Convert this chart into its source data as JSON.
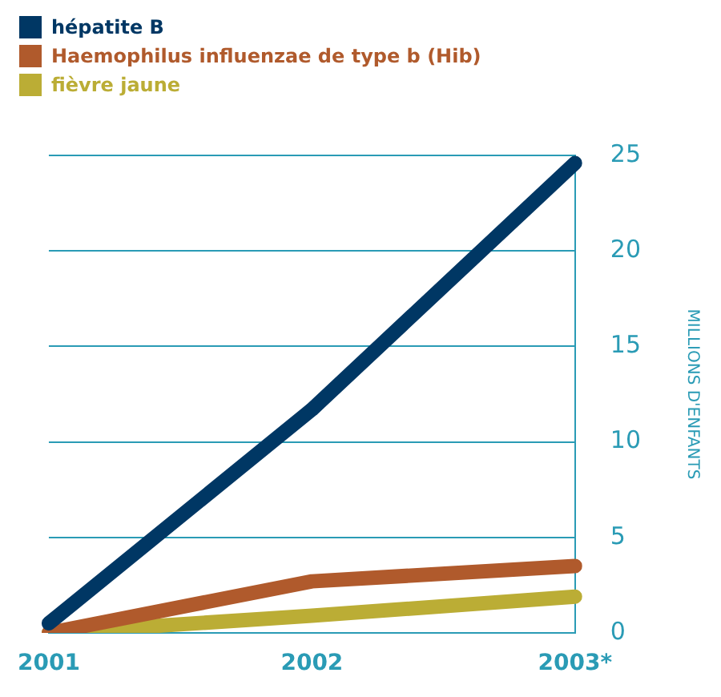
{
  "chart_data": {
    "type": "line",
    "ylabel": "MILLIONS D'ENFANTS",
    "categories": [
      "2001",
      "2002",
      "2003*"
    ],
    "series": [
      {
        "name": "hépatite B",
        "color": "#003764",
        "values": [
          0.5,
          11.7,
          24.6
        ]
      },
      {
        "name": "Haemophilus influenzae de type b (Hib)",
        "color": "#b05a2c",
        "values": [
          0,
          2.7,
          3.5
        ]
      },
      {
        "name": "fièvre jaune",
        "color": "#bbad35",
        "values": [
          0,
          0.9,
          1.9
        ]
      }
    ],
    "ylim": [
      0,
      25
    ],
    "yticks": [
      0,
      5,
      10,
      15,
      20,
      25
    ],
    "grid": "y",
    "legend": "top left",
    "marker": "none",
    "line_style": "solid"
  }
}
